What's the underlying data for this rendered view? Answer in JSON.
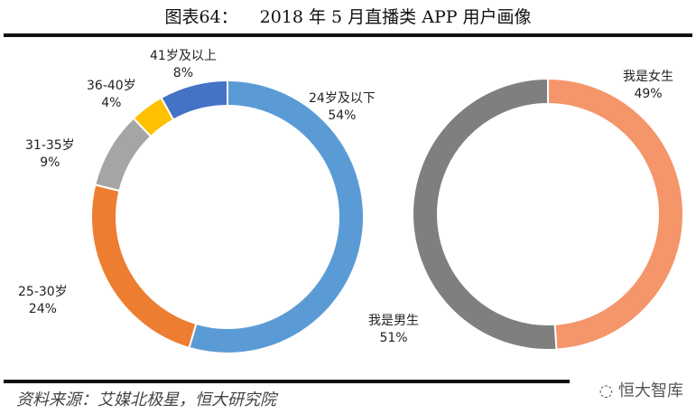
{
  "header": {
    "figure_no": "图表64：",
    "title": "2018 年 5 月直播类 APP 用户画像"
  },
  "footer": {
    "source": "资料来源：艾媒北极星，恒大研究院",
    "watermark": "恒大智库"
  },
  "chart_data": [
    {
      "type": "pie",
      "donut": true,
      "title": "",
      "start": "top",
      "direction": "clockwise",
      "categories": [
        "24岁及以下",
        "25-30岁",
        "31-35岁",
        "36-40岁",
        "41岁及以上"
      ],
      "values": [
        54,
        24,
        9,
        4,
        8
      ],
      "labels": [
        "54%",
        "24%",
        "9%",
        "4%",
        "8%"
      ],
      "colors": [
        "#5B9BD5",
        "#ED7D31",
        "#A5A5A5",
        "#FFC000",
        "#4472C4"
      ]
    },
    {
      "type": "pie",
      "donut": true,
      "title": "",
      "start": "top",
      "direction": "clockwise",
      "categories": [
        "我是女生",
        "我是男生"
      ],
      "values": [
        49,
        51
      ],
      "labels": [
        "49%",
        "51%"
      ],
      "colors": [
        "#F4956A",
        "#7F7F7F"
      ]
    }
  ]
}
